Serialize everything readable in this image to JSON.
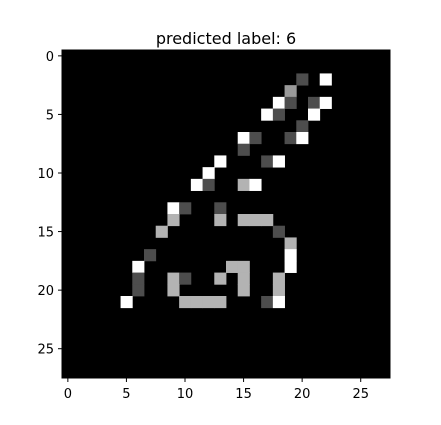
{
  "chart_data": {
    "type": "heatmap",
    "title": "predicted label: 6",
    "xlabel": "",
    "ylabel": "",
    "grid": false,
    "colormap": "gray",
    "value_range": [
      0,
      1
    ],
    "rows": 28,
    "cols": 28,
    "xlim": [
      -0.5,
      27.5
    ],
    "ylim": [
      27.5,
      -0.5
    ],
    "x_ticks": [
      0,
      5,
      10,
      15,
      20,
      25
    ],
    "y_ticks": [
      0,
      5,
      10,
      15,
      20,
      25
    ],
    "cells": [
      [
        2,
        20,
        0.3
      ],
      [
        2,
        22,
        1.0
      ],
      [
        3,
        19,
        0.6
      ],
      [
        4,
        18,
        1.0
      ],
      [
        4,
        19,
        0.3
      ],
      [
        4,
        21,
        0.3
      ],
      [
        4,
        22,
        1.0
      ],
      [
        5,
        17,
        1.0
      ],
      [
        5,
        18,
        0.3
      ],
      [
        5,
        21,
        1.0
      ],
      [
        6,
        20,
        0.3
      ],
      [
        7,
        15,
        1.0
      ],
      [
        7,
        16,
        0.3
      ],
      [
        7,
        19,
        0.3
      ],
      [
        7,
        20,
        1.0
      ],
      [
        8,
        15,
        0.3
      ],
      [
        9,
        13,
        1.0
      ],
      [
        9,
        17,
        0.3
      ],
      [
        9,
        18,
        1.0
      ],
      [
        10,
        12,
        1.0
      ],
      [
        11,
        11,
        1.0
      ],
      [
        11,
        12,
        0.3
      ],
      [
        11,
        15,
        0.7
      ],
      [
        11,
        16,
        1.0
      ],
      [
        13,
        9,
        1.0
      ],
      [
        13,
        10,
        0.3
      ],
      [
        13,
        13,
        0.3
      ],
      [
        14,
        9,
        0.7
      ],
      [
        14,
        13,
        0.7
      ],
      [
        14,
        15,
        0.7
      ],
      [
        14,
        16,
        0.7
      ],
      [
        14,
        17,
        0.7
      ],
      [
        15,
        8,
        0.7
      ],
      [
        15,
        18,
        0.3
      ],
      [
        16,
        19,
        0.7
      ],
      [
        17,
        7,
        0.3
      ],
      [
        17,
        19,
        1.0
      ],
      [
        18,
        6,
        1.0
      ],
      [
        18,
        14,
        0.7
      ],
      [
        18,
        15,
        0.7
      ],
      [
        18,
        19,
        1.0
      ],
      [
        19,
        6,
        0.3
      ],
      [
        19,
        9,
        0.7
      ],
      [
        19,
        10,
        0.3
      ],
      [
        19,
        13,
        0.7
      ],
      [
        19,
        15,
        0.7
      ],
      [
        19,
        18,
        0.7
      ],
      [
        20,
        6,
        0.3
      ],
      [
        20,
        9,
        0.7
      ],
      [
        20,
        15,
        0.7
      ],
      [
        20,
        18,
        0.7
      ],
      [
        21,
        5,
        1.0
      ],
      [
        21,
        10,
        0.7
      ],
      [
        21,
        11,
        0.7
      ],
      [
        21,
        12,
        0.7
      ],
      [
        21,
        13,
        0.7
      ],
      [
        21,
        17,
        0.3
      ],
      [
        21,
        18,
        1.0
      ]
    ]
  }
}
